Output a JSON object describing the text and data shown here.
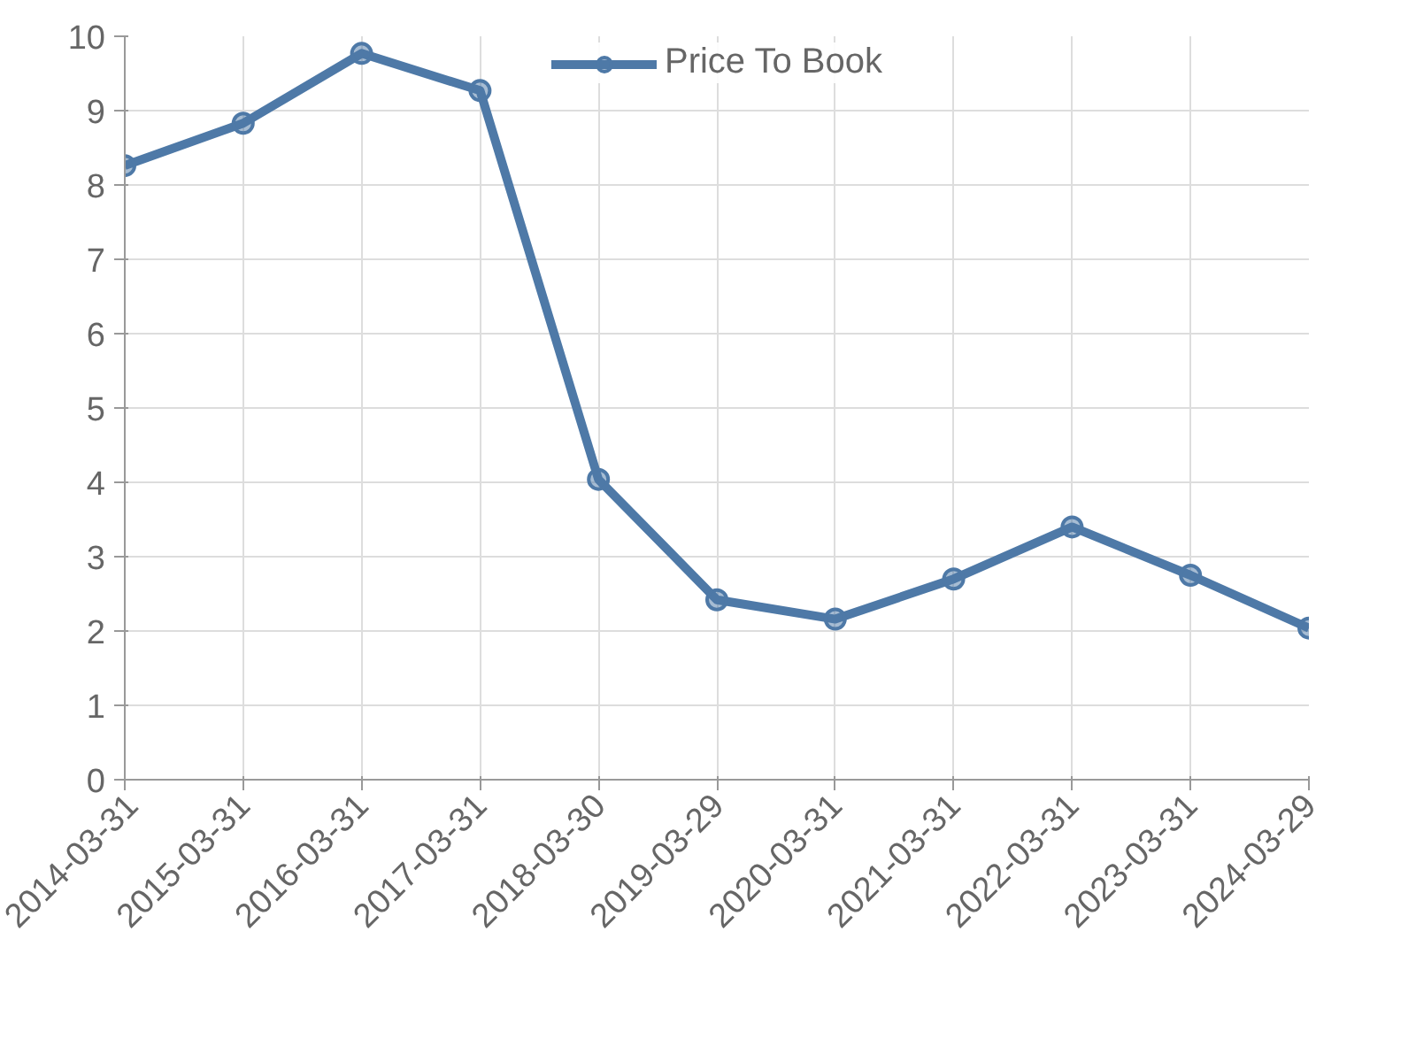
{
  "chart_data": {
    "type": "line",
    "categories": [
      "2014-03-31",
      "2015-03-31",
      "2016-03-31",
      "2017-03-31",
      "2018-03-30",
      "2019-03-29",
      "2020-03-31",
      "2021-03-31",
      "2022-03-31",
      "2023-03-31",
      "2024-03-29"
    ],
    "series": [
      {
        "name": "Price To Book",
        "color": "#4e79a7",
        "values": [
          8.26,
          8.83,
          9.77,
          9.27,
          4.04,
          2.42,
          2.16,
          2.7,
          3.4,
          2.75,
          2.04
        ]
      }
    ],
    "ylim": [
      0,
      10
    ],
    "yticks": [
      0,
      1,
      2,
      3,
      4,
      5,
      6,
      7,
      8,
      9,
      10
    ],
    "grid": true,
    "legend": "top",
    "marker": "circle",
    "line_style": "solid"
  }
}
